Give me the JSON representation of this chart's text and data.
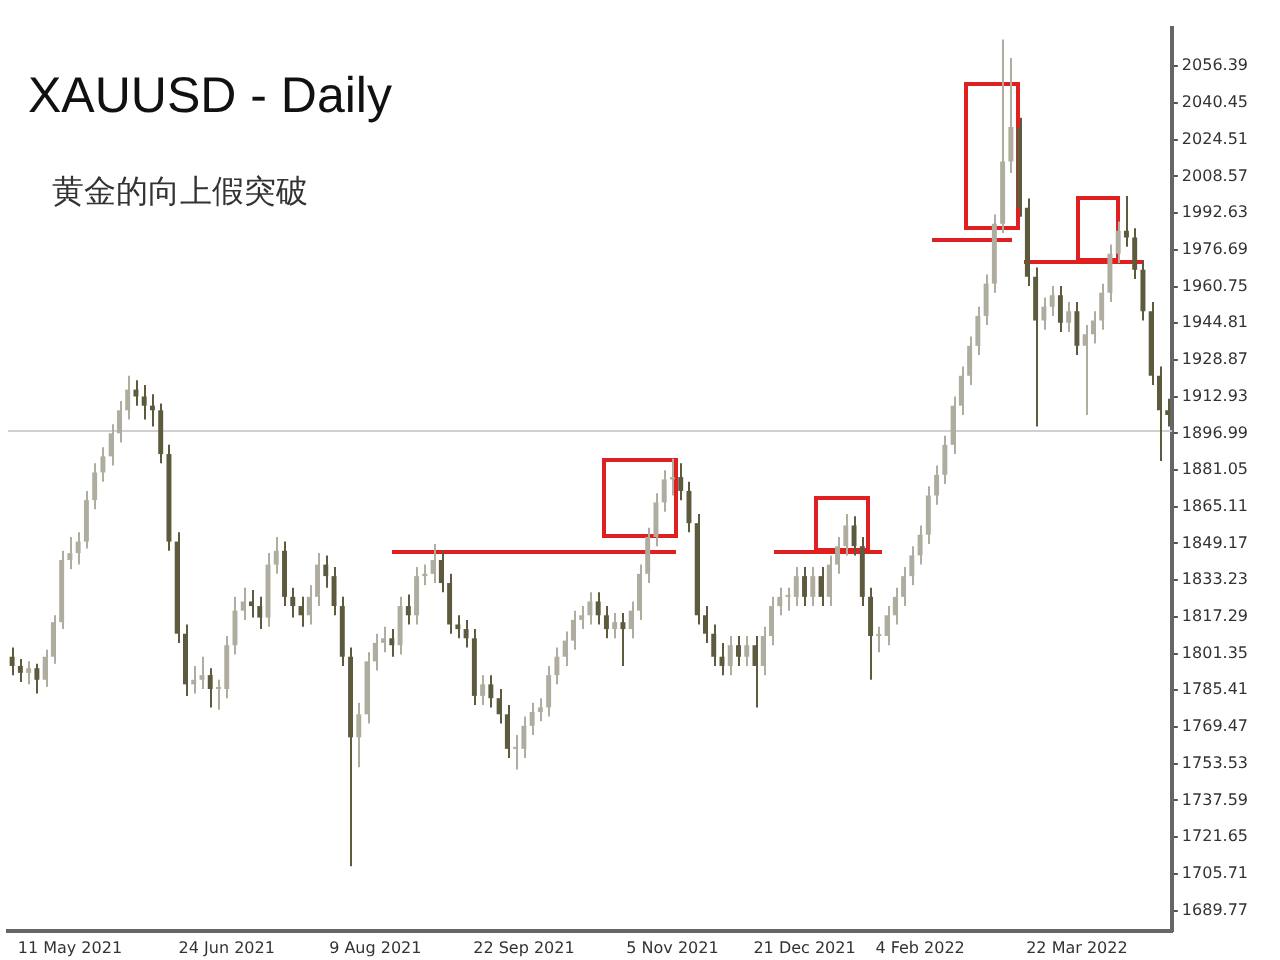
{
  "chart_data": {
    "type": "candlestick",
    "title": "XAUUSD - Daily",
    "subtitle": "黄金的向上假突破",
    "categories": [
      null,
      null,
      null,
      null,
      null,
      null,
      null,
      "11 May 2021",
      null,
      null,
      null,
      null,
      null,
      null,
      null,
      null,
      null,
      null,
      null,
      null,
      null,
      null,
      null,
      null,
      null,
      null,
      "24 Jun 2021",
      null,
      null,
      null,
      null,
      null,
      null,
      null,
      null,
      null,
      null,
      null,
      null,
      null,
      null,
      null,
      null,
      null,
      "9 Aug 2021",
      null,
      null,
      null,
      null,
      null,
      null,
      null,
      null,
      null,
      null,
      null,
      null,
      null,
      null,
      null,
      null,
      null,
      "22 Sep 2021",
      null,
      null,
      null,
      null,
      null,
      null,
      null,
      null,
      null,
      null,
      null,
      null,
      null,
      null,
      null,
      null,
      null,
      "5 Nov 2021",
      null,
      null,
      null,
      null,
      null,
      null,
      null,
      null,
      null,
      null,
      null,
      null,
      null,
      null,
      null,
      "21 Dec 2021",
      null,
      null,
      null,
      null,
      null,
      null,
      null,
      null,
      null,
      null,
      null,
      null,
      null,
      "4 Feb 2022",
      null,
      null,
      null,
      null,
      null,
      null,
      null,
      null,
      null,
      null,
      null,
      null,
      null,
      null,
      null,
      null,
      null,
      null,
      "22 Mar 2022",
      null,
      null,
      null,
      null,
      null,
      null,
      null,
      null,
      null,
      null,
      null
    ],
    "series": [
      {
        "colors": [
          "#5e5a3e",
          "#5e5a3e",
          "#afad9f",
          "#5e5a3e",
          "#afad9f",
          "#afad9f",
          "#afad9f",
          "#afad9f",
          "#afad9f",
          "#afad9f",
          "#afad9f",
          "#afad9f",
          "#afad9f",
          "#afad9f",
          "#afad9f",
          "#5e5a3e",
          "#5e5a3e",
          "#5e5a3e",
          "#5e5a3e",
          "#5e5a3e",
          "#5e5a3e",
          "#5e5a3e",
          "#afad9f",
          "#afad9f",
          "#5e5a3e",
          "#afad9f",
          "#afad9f",
          "#afad9f",
          "#afad9f",
          "#5e5a3e",
          "#5e5a3e",
          "#afad9f",
          "#afad9f",
          "#5e5a3e",
          "#5e5a3e",
          "#5e5a3e",
          "#afad9f",
          "#afad9f",
          "#5e5a3e",
          "#5e5a3e",
          "#5e5a3e",
          "#5e5a3e",
          "#afad9f",
          "#afad9f",
          "#afad9f",
          "#afad9f",
          "#5e5a3e",
          "#afad9f",
          "#5e5a3e",
          "#afad9f",
          "#afad9f",
          "#afad9f",
          "#5e5a3e",
          "#5e5a3e",
          "#5e5a3e",
          "#5e5a3e",
          "#5e5a3e",
          "#afad9f",
          "#5e5a3e",
          "#5e5a3e",
          "#5e5a3e",
          "#afad9f",
          "#afad9f",
          "#afad9f",
          "#afad9f",
          "#afad9f",
          "#afad9f",
          "#afad9f",
          "#afad9f",
          "#afad9f",
          "#afad9f",
          "#5e5a3e",
          "#5e5a3e",
          "#afad9f",
          "#5e5a3e",
          "#afad9f",
          "#afad9f",
          "#afad9f",
          "#afad9f",
          "#afad9f",
          "#afad9f",
          "#5e5a3e",
          "#5e5a3e",
          "#5e5a3e",
          "#5e5a3e",
          "#5e5a3e",
          "#5e5a3e",
          "#afad9f",
          "#5e5a3e",
          "#afad9f",
          "#5e5a3e",
          "#afad9f",
          "#afad9f",
          "#afad9f",
          "#afad9f",
          "#afad9f",
          "#5e5a3e",
          "#afad9f",
          "#5e5a3e",
          "#afad9f",
          "#afad9f",
          "#afad9f",
          "#5e5a3e",
          "#5e5a3e",
          "#5e5a3e",
          "#afad9f",
          "#afad9f",
          "#afad9f",
          "#afad9f",
          "#afad9f",
          "#afad9f",
          "#afad9f",
          "#afad9f",
          "#afad9f",
          "#afad9f",
          "#afad9f",
          "#afad9f",
          "#afad9f",
          "#afad9f",
          "#afad9f",
          "#afad9f",
          "#afad9f",
          "#5e5a3e",
          "#5e5a3e",
          "#5e5a3e",
          "#afad9f",
          "#afad9f",
          "#5e5a3e",
          "#afad9f",
          "#5e5a3e",
          "#afad9f",
          "#afad9f",
          "#afad9f",
          "#afad9f",
          "#afad9f",
          "#5e5a3e",
          "#5e5a3e",
          "#5e5a3e",
          "#5e5a3e",
          "#5e5a3e",
          "#5e5a3e"
        ],
        "ohlc": [
          [
            1800,
            1804,
            1792,
            1796
          ],
          [
            1796,
            1799,
            1789,
            1793
          ],
          [
            1793,
            1798,
            1788,
            1795
          ],
          [
            1795,
            1797,
            1784,
            1790
          ],
          [
            1790,
            1803,
            1787,
            1800
          ],
          [
            1800,
            1818,
            1797,
            1815
          ],
          [
            1815,
            1846,
            1812,
            1842
          ],
          [
            1842,
            1852,
            1838,
            1845
          ],
          [
            1845,
            1854,
            1840,
            1850
          ],
          [
            1850,
            1872,
            1847,
            1868
          ],
          [
            1868,
            1884,
            1864,
            1880
          ],
          [
            1880,
            1891,
            1876,
            1887
          ],
          [
            1887,
            1901,
            1883,
            1897
          ],
          [
            1897,
            1911,
            1893,
            1907
          ],
          [
            1907,
            1922,
            1903,
            1916
          ],
          [
            1916,
            1920,
            1909,
            1913
          ],
          [
            1913,
            1918,
            1903,
            1909
          ],
          [
            1909,
            1914,
            1900,
            1907
          ],
          [
            1907,
            1910,
            1884,
            1888
          ],
          [
            1888,
            1892,
            1846,
            1850
          ],
          [
            1850,
            1854,
            1806,
            1810
          ],
          [
            1810,
            1814,
            1783,
            1788
          ],
          [
            1788,
            1796,
            1784,
            1790
          ],
          [
            1790,
            1800,
            1786,
            1792
          ],
          [
            1792,
            1795,
            1778,
            1786
          ],
          [
            1786,
            1790,
            1777,
            1786
          ],
          [
            1786,
            1809,
            1782,
            1805
          ],
          [
            1805,
            1826,
            1801,
            1820
          ],
          [
            1820,
            1830,
            1816,
            1824
          ],
          [
            1824,
            1829,
            1817,
            1822
          ],
          [
            1822,
            1826,
            1812,
            1817
          ],
          [
            1817,
            1845,
            1813,
            1840
          ],
          [
            1840,
            1852,
            1836,
            1846
          ],
          [
            1846,
            1850,
            1822,
            1826
          ],
          [
            1826,
            1830,
            1817,
            1822
          ],
          [
            1822,
            1826,
            1813,
            1818
          ],
          [
            1818,
            1831,
            1814,
            1826
          ],
          [
            1826,
            1845,
            1822,
            1840
          ],
          [
            1840,
            1844,
            1830,
            1835
          ],
          [
            1835,
            1839,
            1818,
            1822
          ],
          [
            1822,
            1826,
            1796,
            1800
          ],
          [
            1800,
            1804,
            1709,
            1765
          ],
          [
            1765,
            1780,
            1752,
            1775
          ],
          [
            1775,
            1802,
            1771,
            1798
          ],
          [
            1798,
            1810,
            1794,
            1806
          ],
          [
            1806,
            1813,
            1802,
            1808
          ],
          [
            1808,
            1812,
            1800,
            1805
          ],
          [
            1805,
            1826,
            1801,
            1822
          ],
          [
            1822,
            1827,
            1814,
            1818
          ],
          [
            1818,
            1839,
            1814,
            1835
          ],
          [
            1835,
            1840,
            1831,
            1836
          ],
          [
            1836,
            1849,
            1832,
            1842
          ],
          [
            1842,
            1846,
            1828,
            1832
          ],
          [
            1832,
            1836,
            1810,
            1814
          ],
          [
            1814,
            1818,
            1808,
            1812
          ],
          [
            1812,
            1816,
            1804,
            1808
          ],
          [
            1808,
            1812,
            1779,
            1783
          ],
          [
            1783,
            1792,
            1779,
            1788
          ],
          [
            1788,
            1792,
            1778,
            1782
          ],
          [
            1782,
            1786,
            1771,
            1775
          ],
          [
            1775,
            1779,
            1756,
            1760
          ],
          [
            1760,
            1766,
            1751,
            1760
          ],
          [
            1760,
            1774,
            1756,
            1770
          ],
          [
            1770,
            1780,
            1766,
            1776
          ],
          [
            1776,
            1782,
            1772,
            1778
          ],
          [
            1778,
            1796,
            1774,
            1792
          ],
          [
            1792,
            1804,
            1788,
            1800
          ],
          [
            1800,
            1811,
            1796,
            1807
          ],
          [
            1807,
            1820,
            1803,
            1816
          ],
          [
            1816,
            1822,
            1812,
            1818
          ],
          [
            1818,
            1828,
            1814,
            1824
          ],
          [
            1824,
            1828,
            1814,
            1818
          ],
          [
            1818,
            1822,
            1808,
            1812
          ],
          [
            1812,
            1819,
            1808,
            1815
          ],
          [
            1815,
            1819,
            1796,
            1812
          ],
          [
            1812,
            1824,
            1808,
            1820
          ],
          [
            1820,
            1840,
            1816,
            1836
          ],
          [
            1836,
            1856,
            1832,
            1852
          ],
          [
            1852,
            1871,
            1848,
            1867
          ],
          [
            1867,
            1881,
            1863,
            1877
          ],
          [
            1877,
            1886,
            1870,
            1878
          ],
          [
            1878,
            1884,
            1868,
            1872
          ],
          [
            1872,
            1876,
            1854,
            1858
          ],
          [
            1858,
            1862,
            1814,
            1818
          ],
          [
            1818,
            1822,
            1806,
            1810
          ],
          [
            1810,
            1814,
            1796,
            1800
          ],
          [
            1800,
            1806,
            1792,
            1796
          ],
          [
            1796,
            1809,
            1792,
            1805
          ],
          [
            1805,
            1809,
            1796,
            1800
          ],
          [
            1800,
            1809,
            1796,
            1805
          ],
          [
            1805,
            1809,
            1778,
            1796
          ],
          [
            1796,
            1813,
            1792,
            1809
          ],
          [
            1809,
            1826,
            1805,
            1822
          ],
          [
            1822,
            1830,
            1818,
            1826
          ],
          [
            1826,
            1830,
            1820,
            1826
          ],
          [
            1826,
            1839,
            1822,
            1835
          ],
          [
            1835,
            1839,
            1822,
            1826
          ],
          [
            1826,
            1839,
            1822,
            1835
          ],
          [
            1835,
            1839,
            1822,
            1826
          ],
          [
            1826,
            1844,
            1822,
            1840
          ],
          [
            1840,
            1852,
            1836,
            1848
          ],
          [
            1848,
            1862,
            1844,
            1857
          ],
          [
            1857,
            1861,
            1844,
            1848
          ],
          [
            1848,
            1852,
            1822,
            1826
          ],
          [
            1826,
            1830,
            1790,
            1809
          ],
          [
            1809,
            1813,
            1802,
            1809
          ],
          [
            1809,
            1822,
            1805,
            1818
          ],
          [
            1818,
            1830,
            1814,
            1826
          ],
          [
            1826,
            1839,
            1822,
            1835
          ],
          [
            1835,
            1848,
            1831,
            1844
          ],
          [
            1844,
            1857,
            1840,
            1853
          ],
          [
            1853,
            1874,
            1849,
            1870
          ],
          [
            1870,
            1883,
            1866,
            1879
          ],
          [
            1879,
            1896,
            1875,
            1892
          ],
          [
            1892,
            1913,
            1888,
            1909
          ],
          [
            1909,
            1926,
            1905,
            1922
          ],
          [
            1922,
            1939,
            1918,
            1935
          ],
          [
            1935,
            1952,
            1931,
            1948
          ],
          [
            1948,
            1966,
            1944,
            1962
          ],
          [
            1962,
            1992,
            1958,
            1988
          ],
          [
            1988,
            2068,
            1984,
            2015
          ],
          [
            2015,
            2060,
            2010,
            2030
          ],
          [
            2030,
            2034,
            1991,
            1995
          ],
          [
            1995,
            1999,
            1961,
            1965
          ],
          [
            1965,
            1969,
            1900,
            1946
          ],
          [
            1946,
            1956,
            1942,
            1952
          ],
          [
            1952,
            1961,
            1948,
            1957
          ],
          [
            1957,
            1961,
            1941,
            1945
          ],
          [
            1945,
            1954,
            1941,
            1950
          ],
          [
            1950,
            1954,
            1931,
            1935
          ],
          [
            1935,
            1944,
            1905,
            1940
          ],
          [
            1940,
            1950,
            1936,
            1946
          ],
          [
            1946,
            1962,
            1942,
            1958
          ],
          [
            1958,
            1979,
            1954,
            1975
          ],
          [
            1975,
            1989,
            1971,
            1985
          ],
          [
            1985,
            2000,
            1978,
            1982
          ],
          [
            1982,
            1986,
            1964,
            1968
          ],
          [
            1968,
            1972,
            1946,
            1950
          ],
          [
            1950,
            1954,
            1918,
            1922
          ],
          [
            1922,
            1926,
            1885,
            1907
          ],
          [
            1907,
            1912,
            1900,
            1905
          ]
        ]
      }
    ],
    "ylim": [
      1681,
      2073
    ],
    "yticks": [
      1689.77,
      1705.71,
      1721.65,
      1737.59,
      1753.53,
      1769.47,
      1785.41,
      1801.35,
      1817.29,
      1833.23,
      1849.17,
      1865.11,
      1881.05,
      1896.99,
      1912.93,
      1928.87,
      1944.81,
      1960.75,
      1976.69,
      1992.63,
      2008.57,
      2024.51,
      2040.45,
      2056.39
    ],
    "ref_lines": [
      {
        "axis": "y",
        "value": 1898,
        "color": "#d0d0d0"
      }
    ],
    "grid": false,
    "legend": false
  }
}
